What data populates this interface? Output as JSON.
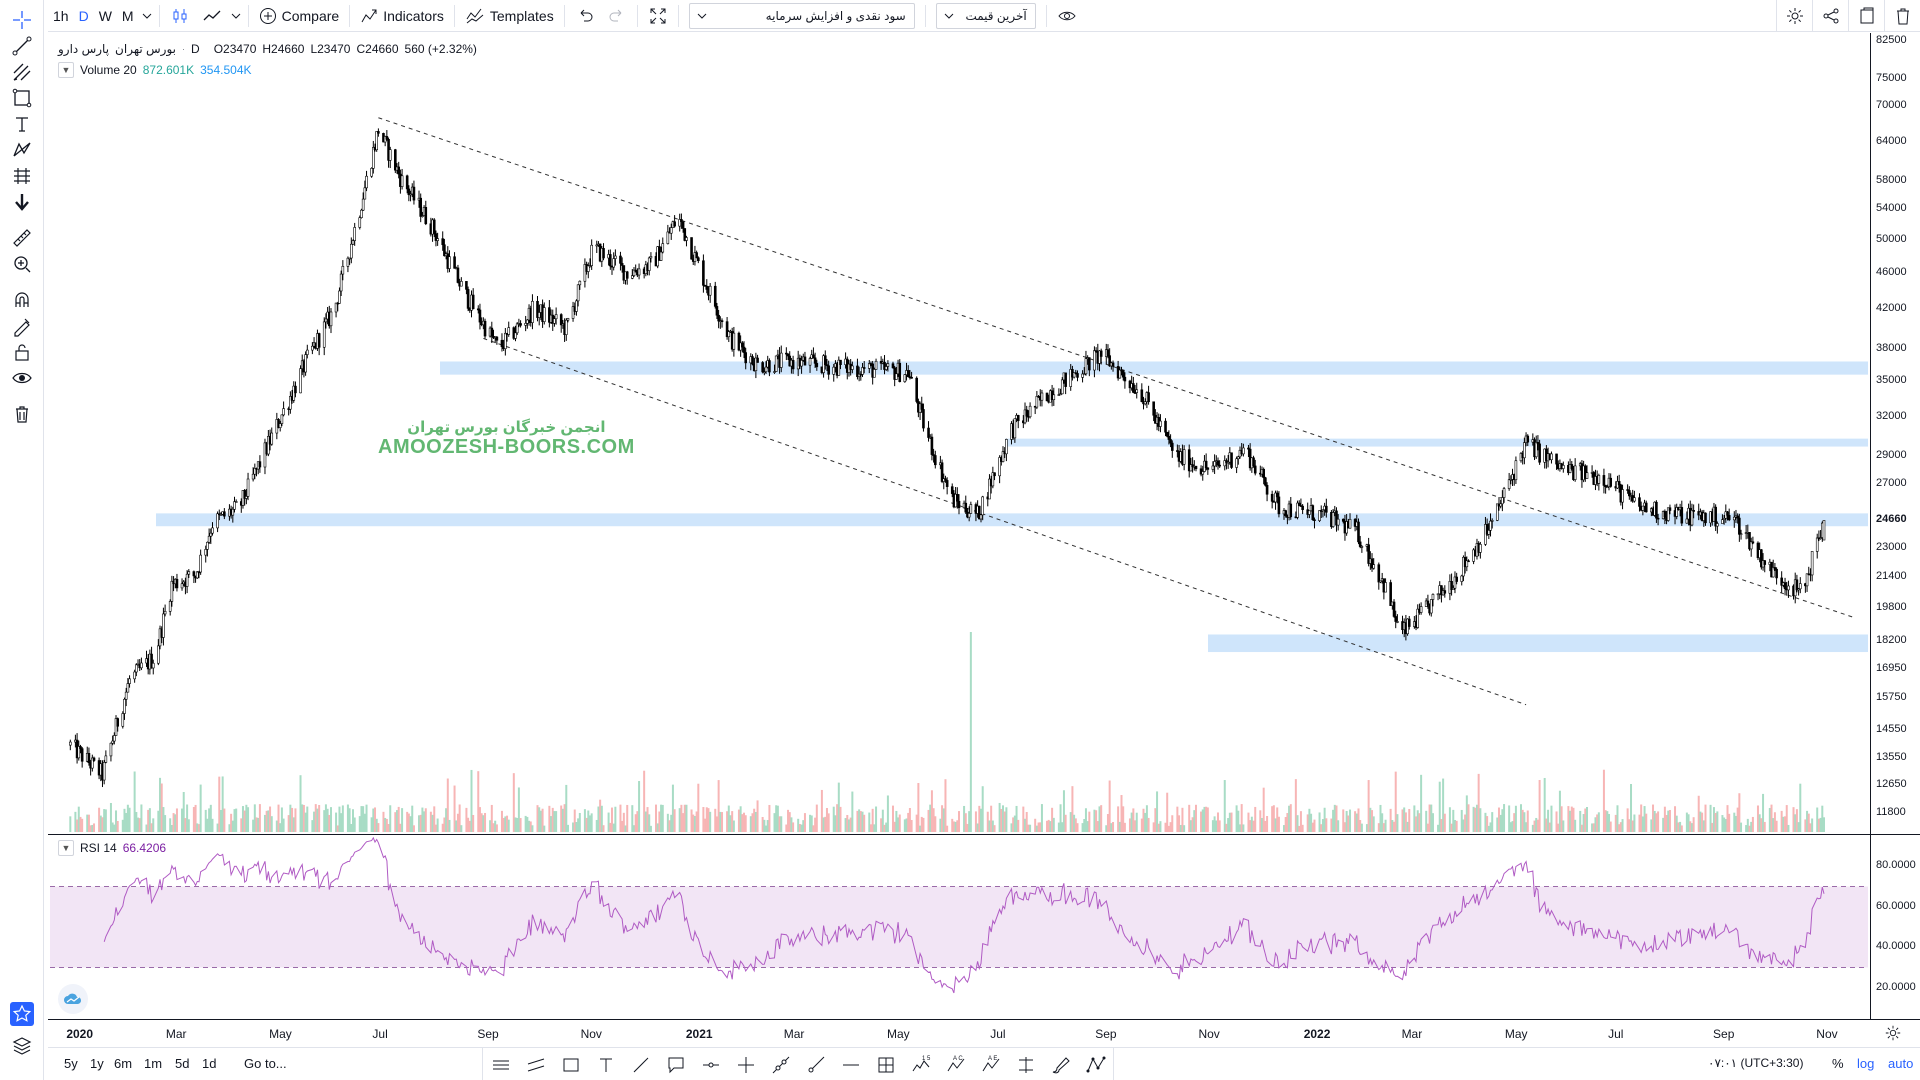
{
  "toolbar": {
    "intervals": [
      "1h",
      "D",
      "W",
      "M"
    ],
    "active_interval": "D",
    "compare_label": "Compare",
    "indicators_label": "Indicators",
    "templates_label": "Templates",
    "dropdown1_value": "سود نقدی و افزایش سرمایه",
    "dropdown2_value": "آخرین قیمت"
  },
  "legend": {
    "symbol_name": "پارس دارو",
    "exchange": "بورس تهران",
    "interval": "D",
    "open": "O23470",
    "high": "H24660",
    "low": "L23470",
    "close": "C24660",
    "change": "560 (+2.32%)",
    "volume_label": "Volume 20",
    "volume_value1": "872.601K",
    "volume_value2": "354.504K",
    "rsi_label": "RSI 14",
    "rsi_value": "66.4206"
  },
  "watermark": {
    "farsi": "انجمن خبرگان بورس تهران",
    "english": "AMOOZESH-BOORS.COM"
  },
  "price_scale": {
    "labels": [
      "82500",
      "75000",
      "70000",
      "64000",
      "58000",
      "54000",
      "50000",
      "46000",
      "42000",
      "38000",
      "35000",
      "32000",
      "29000",
      "27000",
      "24660",
      "23000",
      "21400",
      "19800",
      "18200",
      "16950",
      "15750",
      "14550",
      "13550",
      "12650",
      "11800"
    ],
    "current_price": "24660"
  },
  "rsi_scale": {
    "labels": [
      "80.0000",
      "60.0000",
      "40.0000",
      "20.0000"
    ]
  },
  "time_axis": {
    "labels": [
      "2020",
      "Mar",
      "May",
      "Jul",
      "Sep",
      "Nov",
      "2021",
      "Mar",
      "May",
      "Jul",
      "Sep",
      "Nov",
      "2022",
      "Mar",
      "May",
      "Jul",
      "Sep",
      "Nov"
    ]
  },
  "bottom": {
    "ranges": [
      "5y",
      "1y",
      "6m",
      "1m",
      "5d",
      "1d"
    ],
    "goto_label": "Go to...",
    "time": "۰۷:۰۱ (UTC+3:30)",
    "percent_label": "%",
    "log_label": "log",
    "auto_label": "auto"
  },
  "colors": {
    "accent": "#2962ff",
    "candle": "#000000",
    "zone": "#cfe5fb",
    "rsi_line": "#b05bc4",
    "rsi_band": "#f2e5f5",
    "vol_up": "#a8dcc5",
    "vol_down": "#f7b5b5",
    "watermark": "#2ea043"
  },
  "chart_data": {
    "type": "candlestick",
    "symbol": "پارس دارو",
    "ohlc_last": {
      "open": 23470,
      "high": 24660,
      "low": 23470,
      "close": 24660
    },
    "price_path": [
      [
        "2020-01-01",
        14000
      ],
      [
        "2020-01-20",
        13000
      ],
      [
        "2020-02-05",
        16500
      ],
      [
        "2020-02-20",
        17500
      ],
      [
        "2020-03-01",
        21000
      ],
      [
        "2020-03-15",
        21500
      ],
      [
        "2020-03-25",
        24500
      ],
      [
        "2020-04-10",
        25500
      ],
      [
        "2020-05-01",
        31000
      ],
      [
        "2020-05-20",
        37000
      ],
      [
        "2020-06-05",
        42000
      ],
      [
        "2020-06-20",
        54000
      ],
      [
        "2020-07-01",
        66000
      ],
      [
        "2020-07-15",
        58000
      ],
      [
        "2020-08-01",
        52000
      ],
      [
        "2020-08-20",
        44000
      ],
      [
        "2020-09-10",
        38000
      ],
      [
        "2020-10-01",
        42000
      ],
      [
        "2020-10-20",
        40000
      ],
      [
        "2020-11-05",
        49000
      ],
      [
        "2020-11-25",
        46000
      ],
      [
        "2020-12-10",
        47000
      ],
      [
        "2020-12-25",
        53000
      ],
      [
        "2021-01-10",
        45000
      ],
      [
        "2021-01-25",
        39000
      ],
      [
        "2021-02-10",
        36500
      ],
      [
        "2021-03-01",
        36800
      ],
      [
        "2021-04-01",
        36300
      ],
      [
        "2021-05-10",
        35800
      ],
      [
        "2021-05-20",
        31000
      ],
      [
        "2021-06-05",
        26000
      ],
      [
        "2021-06-20",
        25000
      ],
      [
        "2021-07-10",
        31000
      ],
      [
        "2021-08-01",
        34000
      ],
      [
        "2021-09-01",
        37500
      ],
      [
        "2021-09-25",
        34000
      ],
      [
        "2021-10-15",
        29000
      ],
      [
        "2021-11-05",
        28000
      ],
      [
        "2021-11-25",
        29500
      ],
      [
        "2021-12-15",
        25500
      ],
      [
        "2022-01-10",
        25000
      ],
      [
        "2022-01-30",
        24000
      ],
      [
        "2022-02-15",
        21000
      ],
      [
        "2022-02-25",
        18500
      ],
      [
        "2022-03-10",
        19500
      ],
      [
        "2022-03-30",
        21500
      ],
      [
        "2022-04-20",
        24500
      ],
      [
        "2022-05-10",
        30000
      ],
      [
        "2022-06-01",
        28000
      ],
      [
        "2022-06-25",
        27500
      ],
      [
        "2022-07-15",
        25500
      ],
      [
        "2022-08-10",
        25000
      ],
      [
        "2022-09-10",
        24800
      ],
      [
        "2022-10-01",
        21800
      ],
      [
        "2022-10-20",
        20500
      ],
      [
        "2022-11-02",
        24660
      ]
    ],
    "zones": [
      {
        "from": 35600,
        "to": 36800
      },
      {
        "from": 29700,
        "to": 30300
      },
      {
        "from": 24300,
        "to": 25100
      },
      {
        "from": 17700,
        "to": 18500
      }
    ],
    "trendlines": [
      {
        "from": [
          "2020-07-01",
          68000
        ],
        "to": [
          "2022-11-20",
          19300
        ]
      },
      {
        "from": [
          "2020-09-01",
          39000
        ],
        "to": [
          "2022-05-10",
          15500
        ]
      }
    ],
    "rsi": {
      "period": 14,
      "last": 66.4206,
      "upper": 70,
      "lower": 30
    }
  }
}
